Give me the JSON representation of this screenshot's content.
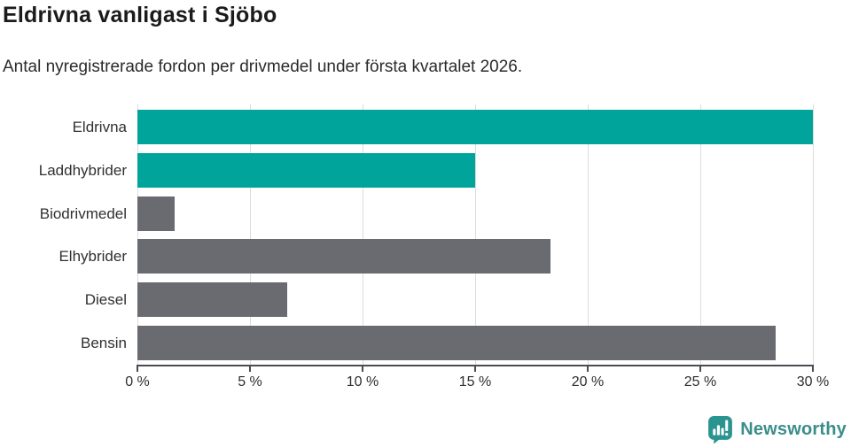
{
  "header": {
    "title": "Eldrivna vanligast i Sjöbo",
    "subtitle": "Antal nyregistrerade fordon per drivmedel under första kvartalet 2026."
  },
  "chart_data": {
    "type": "bar",
    "orientation": "horizontal",
    "title": "Eldrivna vanligast i Sjöbo",
    "subtitle": "Antal nyregistrerade fordon per drivmedel under första kvartalet 2026.",
    "categories": [
      "Eldrivna",
      "Laddhybrider",
      "Biodrivmedel",
      "Elhybrider",
      "Diesel",
      "Bensin"
    ],
    "values": [
      30,
      15,
      1.67,
      18.33,
      6.67,
      28.33
    ],
    "highlighted": [
      true,
      true,
      false,
      false,
      false,
      false
    ],
    "xlabel": "",
    "ylabel": "",
    "xlim": [
      0,
      30
    ],
    "x_ticks": [
      0,
      5,
      10,
      15,
      20,
      25,
      30
    ],
    "x_tick_labels": [
      "0 %",
      "5 %",
      "10 %",
      "15 %",
      "20 %",
      "25 %",
      "30 %"
    ],
    "grid": true,
    "legend": false,
    "colors": {
      "highlight": "#00a49b",
      "base": "#6a6a71",
      "gridline": "#dcdcdc",
      "axis": "#4b4b52"
    }
  },
  "footer": {
    "brand": "Newsworthy",
    "brand_icon": "newsworthy-bar-chart-bubble-icon",
    "brand_color": "#398e8a",
    "brand_icon_color": "#2a9490"
  }
}
